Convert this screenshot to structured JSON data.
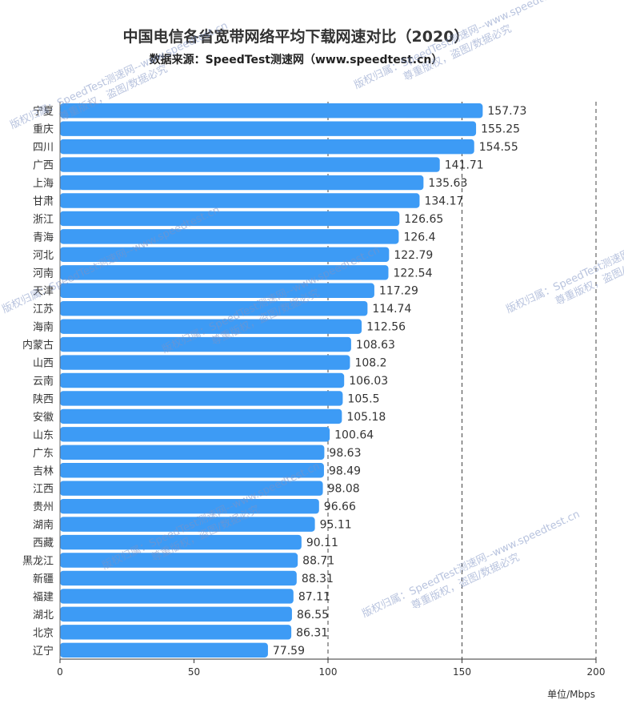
{
  "chart_data": {
    "type": "bar",
    "orientation": "horizontal",
    "title": "中国电信各省宽带网络平均下载网速对比（2020）",
    "subtitle": "数据来源：SpeedTest测速网（www.speedtest.cn）",
    "xlabel": "单位/Mbps",
    "xlim": [
      0,
      200
    ],
    "x_ticks": [
      "0",
      "50",
      "100",
      "150",
      "200"
    ],
    "grid": "dashed vertical at 100, 150, 200",
    "bar_color": "#3d9bf5",
    "categories": [
      "宁夏",
      "重庆",
      "四川",
      "广西",
      "上海",
      "甘肃",
      "浙江",
      "青海",
      "河北",
      "河南",
      "天津",
      "江苏",
      "海南",
      "内蒙古",
      "山西",
      "云南",
      "陕西",
      "安徽",
      "山东",
      "广东",
      "吉林",
      "江西",
      "贵州",
      "湖南",
      "西藏",
      "黑龙江",
      "新疆",
      "福建",
      "湖北",
      "北京",
      "辽宁"
    ],
    "values": [
      157.73,
      155.25,
      154.55,
      141.71,
      135.63,
      134.17,
      126.65,
      126.4,
      122.79,
      122.54,
      117.29,
      114.74,
      112.56,
      108.63,
      108.2,
      106.03,
      105.5,
      105.18,
      100.64,
      98.63,
      98.49,
      98.08,
      96.66,
      95.11,
      90.11,
      88.71,
      88.31,
      87.11,
      86.55,
      86.31,
      77.59
    ],
    "value_labels": [
      "157.73",
      "155.25",
      "154.55",
      "141.71",
      "135.63",
      "134.17",
      "126.65",
      "126.4",
      "122.79",
      "122.54",
      "117.29",
      "114.74",
      "112.56",
      "108.63",
      "108.2",
      "106.03",
      "105.5",
      "105.18",
      "100.64",
      "98.63",
      "98.49",
      "98.08",
      "96.66",
      "95.11",
      "90.11",
      "88.71",
      "88.31",
      "87.11",
      "86.55",
      "86.31",
      "77.59"
    ]
  },
  "watermark": {
    "line1": "版权归属：SpeedTest测速网--www.speedtest.cn",
    "line2": "尊重版权，盗图/数据必究"
  }
}
